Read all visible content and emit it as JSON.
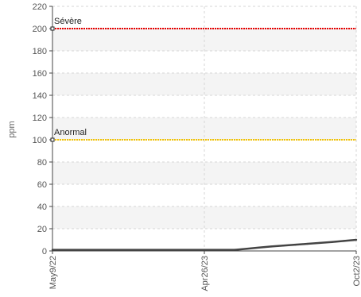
{
  "chart_data": {
    "type": "line",
    "title": "",
    "ylabel": "ppm",
    "xlabel": "",
    "ylim": [
      0,
      220
    ],
    "y_ticks": [
      0,
      20,
      40,
      60,
      80,
      100,
      120,
      140,
      160,
      180,
      200,
      220
    ],
    "y_tick_labels": [
      "0",
      "20",
      "40",
      "60",
      "80",
      "100",
      "120",
      "140",
      "160",
      "180",
      "200",
      "220"
    ],
    "x_tick_labels": [
      "May9/22",
      "Apr26/23",
      "Oct2/23"
    ],
    "grid": true,
    "thresholds": [
      {
        "label": "Sévère",
        "value": 200,
        "color": "#e60000"
      },
      {
        "label": "Anormal",
        "value": 100,
        "color": "#f2c200"
      }
    ],
    "series": [
      {
        "color": "#444444",
        "x": [
          0,
          0.6,
          0.64,
          0.68,
          0.72,
          0.76,
          0.8,
          0.84,
          0.88,
          0.92,
          0.96,
          1.0
        ],
        "values": [
          1,
          1,
          2,
          3,
          4,
          4.8,
          5.6,
          6.4,
          7.2,
          8,
          9,
          10
        ]
      }
    ]
  }
}
